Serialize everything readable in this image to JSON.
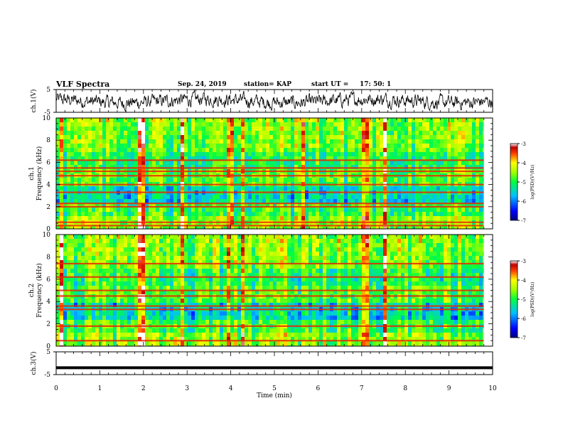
{
  "header": {
    "title": "VLF Spectra",
    "date": "Sep. 24, 2019",
    "station": "station= KAP",
    "start_label": "start  UT =",
    "start_time": "17: 50: 1"
  },
  "chart_data": [
    {
      "type": "line",
      "id": "ch1-waveform",
      "ylabel": "ch.1(V)",
      "ylim": [
        -5,
        5
      ],
      "yticks": [
        5,
        -5
      ],
      "xlim": [
        0,
        10
      ],
      "trace": "dense noisy waveform roughly centred near 0 V spanning most of the range"
    },
    {
      "type": "heatmap",
      "id": "ch1-spectrogram",
      "ylabel_top": "ch.1",
      "ylabel": "Frequency (kHz)",
      "ylim": [
        0,
        10
      ],
      "yticks": [
        0,
        2,
        4,
        6,
        8,
        10
      ],
      "xlim": [
        0,
        9.8
      ],
      "colorbar": {
        "label": "log(PSD)(V²/Hz)",
        "range": [
          -7,
          -3
        ],
        "ticks": [
          -3,
          -4,
          -5,
          -6,
          -7
        ]
      },
      "bands_khz": [
        0.3,
        0.6,
        2.0,
        2.3,
        3.3,
        4.0,
        4.8,
        5.2,
        5.5,
        6.2
      ],
      "strong_bursts_min": [
        0.1,
        1.9,
        2.85,
        3.9,
        4.0,
        4.25,
        5.6,
        7.05,
        7.5
      ]
    },
    {
      "type": "heatmap",
      "id": "ch2-spectrogram",
      "ylabel_top": "ch.2",
      "ylabel": "Frequency (kHz)",
      "ylim": [
        0,
        10
      ],
      "yticks": [
        0,
        2,
        4,
        6,
        8,
        10
      ],
      "xlim": [
        0,
        9.8
      ],
      "colorbar": {
        "label": "log(PSD)(V²/Hz)",
        "range": [
          -7,
          -3
        ],
        "ticks": [
          -3,
          -4,
          -5,
          -6,
          -7
        ]
      },
      "bands_khz": [
        0.5,
        1.8,
        3.3,
        3.6,
        4.5,
        5.0,
        6.2,
        7.4
      ],
      "strong_bursts_min": [
        0.1,
        1.9,
        2.85,
        3.9,
        4.25,
        7.05,
        7.5
      ]
    },
    {
      "type": "line",
      "id": "ch3-waveform",
      "ylabel": "ch.3(V)",
      "ylim": [
        -5,
        5
      ],
      "yticks": [
        5,
        -5
      ],
      "xlim": [
        0,
        10
      ],
      "constant_value": -2
    }
  ],
  "xaxis": {
    "label": "Time (min)",
    "ticks": [
      0,
      1,
      2,
      3,
      4,
      5,
      6,
      7,
      8,
      9,
      10
    ]
  }
}
